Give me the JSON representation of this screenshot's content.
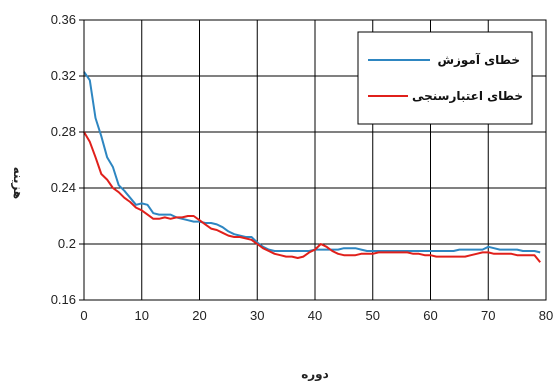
{
  "chart_data": {
    "type": "line",
    "title": "",
    "xlabel": "دوره",
    "ylabel": "هزینه",
    "xlim": [
      0,
      80
    ],
    "ylim": [
      0.16,
      0.36
    ],
    "xticks": [
      0,
      10,
      20,
      30,
      40,
      50,
      60,
      70,
      80
    ],
    "yticks": [
      0.16,
      0.2,
      0.24,
      0.28,
      0.32,
      0.36
    ],
    "ytick_labels": [
      "0.16",
      "0.2",
      "0.24",
      "0.28",
      "0.32",
      "0.36"
    ],
    "grid": true,
    "legend_position": "top-right",
    "x": [
      0,
      1,
      2,
      3,
      4,
      5,
      6,
      7,
      8,
      9,
      10,
      11,
      12,
      13,
      14,
      15,
      16,
      17,
      18,
      19,
      20,
      21,
      22,
      23,
      24,
      25,
      26,
      27,
      28,
      29,
      30,
      31,
      32,
      33,
      34,
      35,
      36,
      37,
      38,
      39,
      40,
      41,
      42,
      43,
      44,
      45,
      46,
      47,
      48,
      49,
      50,
      51,
      52,
      53,
      54,
      55,
      56,
      57,
      58,
      59,
      60,
      61,
      62,
      63,
      64,
      65,
      66,
      67,
      68,
      69,
      70,
      71,
      72,
      73,
      74,
      75,
      76,
      77,
      78,
      79
    ],
    "series": [
      {
        "name": "خطای آموزش",
        "color": "#2e86c1",
        "values": [
          0.323,
          0.317,
          0.29,
          0.277,
          0.262,
          0.255,
          0.242,
          0.238,
          0.233,
          0.228,
          0.229,
          0.228,
          0.222,
          0.221,
          0.221,
          0.221,
          0.219,
          0.218,
          0.217,
          0.216,
          0.216,
          0.215,
          0.215,
          0.214,
          0.212,
          0.209,
          0.207,
          0.206,
          0.205,
          0.205,
          0.201,
          0.198,
          0.196,
          0.195,
          0.195,
          0.195,
          0.195,
          0.195,
          0.195,
          0.195,
          0.196,
          0.196,
          0.196,
          0.196,
          0.196,
          0.197,
          0.197,
          0.197,
          0.196,
          0.195,
          0.195,
          0.195,
          0.195,
          0.195,
          0.195,
          0.195,
          0.195,
          0.195,
          0.195,
          0.195,
          0.195,
          0.195,
          0.195,
          0.195,
          0.195,
          0.196,
          0.196,
          0.196,
          0.196,
          0.196,
          0.198,
          0.197,
          0.196,
          0.196,
          0.196,
          0.196,
          0.195,
          0.195,
          0.195,
          0.194
        ]
      },
      {
        "name": "خطای اعتبارسنجی",
        "color": "#e0201b",
        "values": [
          0.28,
          0.273,
          0.262,
          0.25,
          0.246,
          0.24,
          0.237,
          0.233,
          0.23,
          0.226,
          0.224,
          0.221,
          0.218,
          0.218,
          0.219,
          0.218,
          0.219,
          0.219,
          0.22,
          0.22,
          0.217,
          0.214,
          0.211,
          0.21,
          0.208,
          0.206,
          0.205,
          0.205,
          0.204,
          0.203,
          0.2,
          0.197,
          0.195,
          0.193,
          0.192,
          0.191,
          0.191,
          0.19,
          0.191,
          0.194,
          0.196,
          0.2,
          0.198,
          0.195,
          0.193,
          0.192,
          0.192,
          0.192,
          0.193,
          0.193,
          0.193,
          0.194,
          0.194,
          0.194,
          0.194,
          0.194,
          0.194,
          0.193,
          0.193,
          0.192,
          0.192,
          0.191,
          0.191,
          0.191,
          0.191,
          0.191,
          0.191,
          0.192,
          0.193,
          0.194,
          0.194,
          0.193,
          0.193,
          0.193,
          0.193,
          0.192,
          0.192,
          0.192,
          0.192,
          0.187
        ]
      }
    ]
  }
}
